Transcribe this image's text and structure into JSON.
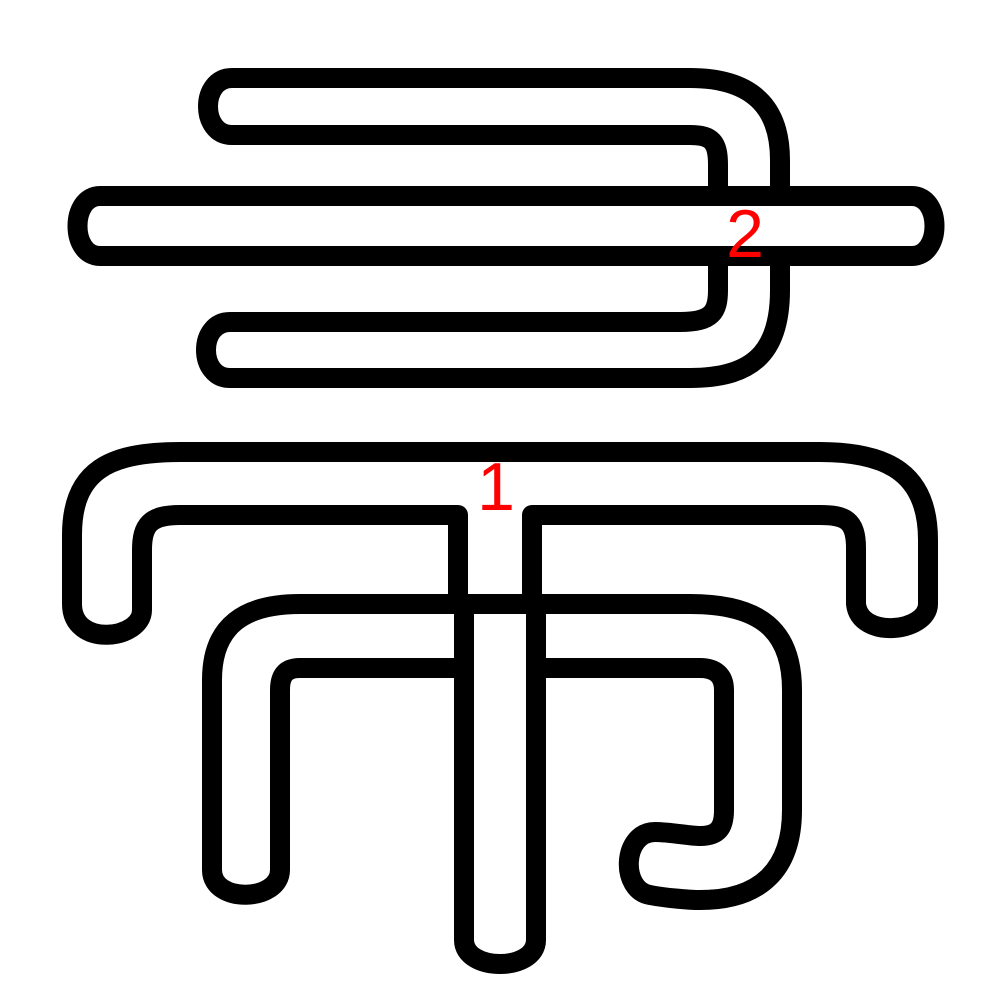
{
  "colors": {
    "background": "#ffffff",
    "outline": "#000000",
    "label": "#ff0000"
  },
  "strokes": [
    {
      "number": "1"
    },
    {
      "number": "2"
    }
  ]
}
